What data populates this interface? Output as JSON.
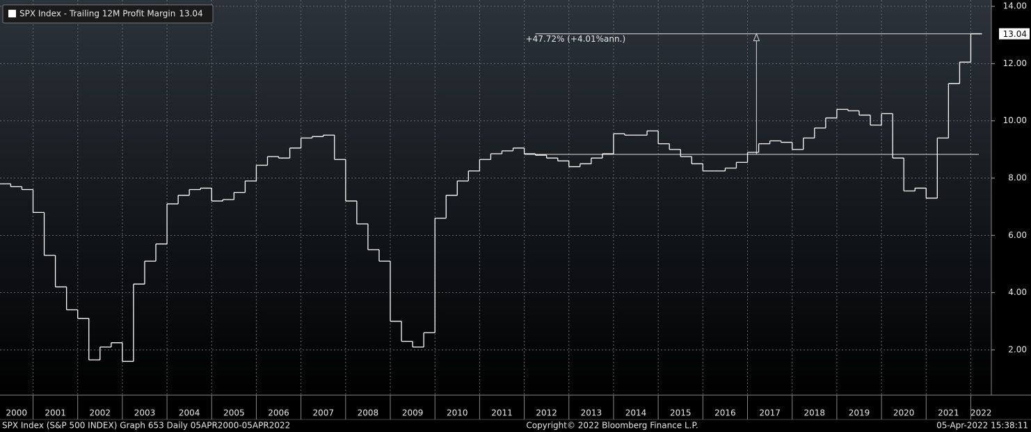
{
  "chart_data": {
    "type": "step-line",
    "series": [
      {
        "name": "SPX Index - Trailing 12M Profit Margin",
        "color": "#ffffff",
        "values": [
          7.8,
          7.7,
          7.6,
          6.8,
          5.3,
          4.2,
          3.4,
          3.1,
          1.65,
          2.1,
          2.25,
          1.6,
          4.3,
          5.1,
          5.7,
          7.1,
          7.4,
          7.6,
          7.65,
          7.2,
          7.25,
          7.5,
          7.9,
          8.45,
          8.75,
          8.7,
          9.05,
          9.4,
          9.45,
          9.5,
          8.65,
          7.2,
          6.4,
          5.5,
          5.1,
          3.0,
          2.3,
          2.1,
          2.6,
          6.6,
          7.4,
          7.9,
          8.25,
          8.65,
          8.85,
          8.95,
          9.05,
          8.85,
          8.8,
          8.7,
          8.6,
          8.4,
          8.5,
          8.7,
          8.85,
          9.55,
          9.5,
          9.5,
          9.65,
          9.2,
          9.0,
          8.75,
          8.5,
          8.25,
          8.25,
          8.35,
          8.55,
          8.9,
          9.2,
          9.3,
          9.25,
          9.0,
          9.4,
          9.75,
          10.1,
          10.4,
          10.35,
          10.2,
          9.85,
          10.25,
          8.7,
          7.55,
          7.65,
          7.3,
          9.4,
          11.3,
          12.05,
          13.04
        ]
      }
    ],
    "x": [
      2000.25,
      2000.5,
      2000.75,
      2001,
      2001.25,
      2001.5,
      2001.75,
      2002,
      2002.25,
      2002.5,
      2002.75,
      2003,
      2003.25,
      2003.5,
      2003.75,
      2004,
      2004.25,
      2004.5,
      2004.75,
      2005,
      2005.25,
      2005.5,
      2005.75,
      2006,
      2006.25,
      2006.5,
      2006.75,
      2007,
      2007.25,
      2007.5,
      2007.75,
      2008,
      2008.25,
      2008.5,
      2008.75,
      2009,
      2009.25,
      2009.5,
      2009.75,
      2010,
      2010.25,
      2010.5,
      2010.75,
      2011,
      2011.25,
      2011.5,
      2011.75,
      2012,
      2012.25,
      2012.5,
      2012.75,
      2013,
      2013.25,
      2013.5,
      2013.75,
      2014,
      2014.25,
      2014.5,
      2014.75,
      2015,
      2015.25,
      2015.5,
      2015.75,
      2016,
      2016.25,
      2016.5,
      2016.75,
      2017,
      2017.25,
      2017.5,
      2017.75,
      2018,
      2018.25,
      2018.5,
      2018.75,
      2019,
      2019.25,
      2019.5,
      2019.75,
      2020,
      2020.25,
      2020.5,
      2020.75,
      2021,
      2021.25,
      2021.5,
      2021.75,
      2022
    ],
    "xlim": [
      2000.26,
      2022.46
    ],
    "xticks": [
      2001,
      2002,
      2003,
      2004,
      2005,
      2006,
      2007,
      2008,
      2009,
      2010,
      2011,
      2012,
      2013,
      2014,
      2015,
      2016,
      2017,
      2018,
      2019,
      2020,
      2021,
      2022
    ],
    "year_labels": [
      2000,
      2001,
      2002,
      2003,
      2004,
      2005,
      2006,
      2007,
      2008,
      2009,
      2010,
      2011,
      2012,
      2013,
      2014,
      2015,
      2016,
      2017,
      2018,
      2019,
      2020,
      2021,
      2022
    ],
    "ylim": [
      0.42,
      14.22
    ],
    "yticks": [
      {
        "value": 2,
        "label": "2.00"
      },
      {
        "value": 4,
        "label": "4.00"
      },
      {
        "value": 6,
        "label": "6.00"
      },
      {
        "value": 8,
        "label": "8.00"
      },
      {
        "value": 10,
        "label": "10.00"
      },
      {
        "value": 12,
        "label": "12.00"
      },
      {
        "value": 14,
        "label": "14.00"
      }
    ],
    "grid": true,
    "legend": "top-left",
    "annotation": {
      "text": "+47.72% (+4.01%ann.)",
      "x_start": 2012.0,
      "x_arrow": 2017.2,
      "from": 8.83,
      "to": 13.04
    },
    "footer": {
      "left": "SPX Index (S&P 500 INDEX) Graph 653  Daily 05APR2000-05APR2022",
      "center": "Copyright© 2022 Bloomberg Finance L.P.",
      "right": "05-Apr-2022 15:38:11"
    }
  }
}
